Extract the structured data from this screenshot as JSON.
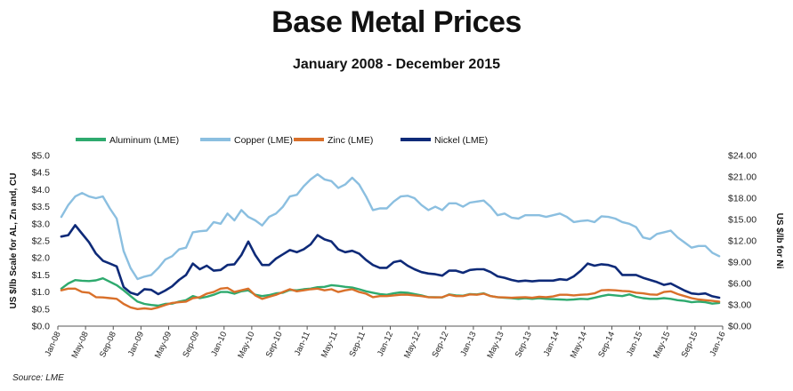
{
  "title": "Base Metal Prices",
  "subtitle": "January 2008 - December 2015",
  "source": "Source: LME",
  "chart_data": {
    "type": "line",
    "x": [
      "2008-01",
      "2008-02",
      "2008-03",
      "2008-04",
      "2008-05",
      "2008-06",
      "2008-07",
      "2008-08",
      "2008-09",
      "2008-10",
      "2008-11",
      "2008-12",
      "2009-01",
      "2009-02",
      "2009-03",
      "2009-04",
      "2009-05",
      "2009-06",
      "2009-07",
      "2009-08",
      "2009-09",
      "2009-10",
      "2009-11",
      "2009-12",
      "2010-01",
      "2010-02",
      "2010-03",
      "2010-04",
      "2010-05",
      "2010-06",
      "2010-07",
      "2010-08",
      "2010-09",
      "2010-10",
      "2010-11",
      "2010-12",
      "2011-01",
      "2011-02",
      "2011-03",
      "2011-04",
      "2011-05",
      "2011-06",
      "2011-07",
      "2011-08",
      "2011-09",
      "2011-10",
      "2011-11",
      "2011-12",
      "2012-01",
      "2012-02",
      "2012-03",
      "2012-04",
      "2012-05",
      "2012-06",
      "2012-07",
      "2012-08",
      "2012-09",
      "2012-10",
      "2012-11",
      "2012-12",
      "2013-01",
      "2013-02",
      "2013-03",
      "2013-04",
      "2013-05",
      "2013-06",
      "2013-07",
      "2013-08",
      "2013-09",
      "2013-10",
      "2013-11",
      "2013-12",
      "2014-01",
      "2014-02",
      "2014-03",
      "2014-04",
      "2014-05",
      "2014-06",
      "2014-07",
      "2014-08",
      "2014-09",
      "2014-10",
      "2014-11",
      "2014-12",
      "2015-01",
      "2015-02",
      "2015-03",
      "2015-04",
      "2015-05",
      "2015-06",
      "2015-07",
      "2015-08",
      "2015-09",
      "2015-10",
      "2015-11",
      "2015-12"
    ],
    "x_tick_labels": [
      "Jan-08",
      "May-08",
      "Sep-08",
      "Jan-09",
      "May-09",
      "Sep-09",
      "Jan-10",
      "May-10",
      "Sep-10",
      "Jan-11",
      "May-11",
      "Sep-11",
      "Jan-12",
      "May-12",
      "Sep-12",
      "Jan-13",
      "May-13",
      "Sep-13",
      "Jan-14",
      "May-14",
      "Sep-14",
      "Jan-15",
      "May-15",
      "Sep-15",
      "Jan-16"
    ],
    "ylabel_left": "US $/lb Scale for AL, Zn and, CU",
    "ylabel_right": "US $/lb for Ni",
    "ylim_left": [
      0,
      5
    ],
    "ylim_right": [
      0,
      24
    ],
    "yticks_left": [
      "$0.0",
      "$0.5",
      "$1.0",
      "$1.5",
      "$2.0",
      "$2.5",
      "$3.0",
      "$3.5",
      "$4.0",
      "$4.5",
      "$5.0"
    ],
    "yticks_right": [
      "$0.00",
      "$3.00",
      "$6.00",
      "$9.00",
      "$12.00",
      "$15.00",
      "$18.00",
      "$21.00",
      "$24.00"
    ],
    "legend_position": "top",
    "grid": false,
    "series": [
      {
        "name": "Aluminum (LME)",
        "axis": "left",
        "color": "#2eaa6e",
        "values": [
          1.1,
          1.25,
          1.35,
          1.33,
          1.32,
          1.34,
          1.4,
          1.3,
          1.2,
          1.05,
          0.88,
          0.72,
          0.65,
          0.62,
          0.6,
          0.65,
          0.66,
          0.72,
          0.76,
          0.88,
          0.82,
          0.86,
          0.92,
          1.0,
          1.0,
          0.95,
          1.02,
          1.05,
          0.92,
          0.88,
          0.91,
          0.96,
          0.98,
          1.06,
          1.05,
          1.08,
          1.1,
          1.14,
          1.15,
          1.2,
          1.18,
          1.15,
          1.13,
          1.08,
          1.02,
          0.98,
          0.94,
          0.92,
          0.96,
          0.99,
          0.98,
          0.94,
          0.9,
          0.85,
          0.85,
          0.84,
          0.93,
          0.9,
          0.89,
          0.94,
          0.93,
          0.96,
          0.88,
          0.85,
          0.83,
          0.82,
          0.8,
          0.82,
          0.8,
          0.82,
          0.8,
          0.79,
          0.78,
          0.77,
          0.78,
          0.8,
          0.79,
          0.83,
          0.88,
          0.92,
          0.9,
          0.88,
          0.93,
          0.86,
          0.82,
          0.8,
          0.8,
          0.82,
          0.8,
          0.76,
          0.74,
          0.7,
          0.72,
          0.7,
          0.66,
          0.68
        ]
      },
      {
        "name": "Copper (LME)",
        "axis": "left",
        "color": "#8bbfe0",
        "values": [
          3.2,
          3.55,
          3.8,
          3.9,
          3.8,
          3.75,
          3.8,
          3.45,
          3.15,
          2.2,
          1.7,
          1.38,
          1.45,
          1.5,
          1.7,
          1.95,
          2.05,
          2.25,
          2.3,
          2.75,
          2.78,
          2.8,
          3.05,
          3.0,
          3.3,
          3.1,
          3.4,
          3.2,
          3.1,
          2.95,
          3.2,
          3.3,
          3.5,
          3.8,
          3.85,
          4.1,
          4.3,
          4.45,
          4.3,
          4.25,
          4.05,
          4.15,
          4.35,
          4.15,
          3.8,
          3.4,
          3.45,
          3.45,
          3.65,
          3.8,
          3.82,
          3.75,
          3.55,
          3.4,
          3.5,
          3.4,
          3.6,
          3.6,
          3.5,
          3.62,
          3.65,
          3.68,
          3.5,
          3.25,
          3.3,
          3.18,
          3.15,
          3.25,
          3.25,
          3.25,
          3.2,
          3.25,
          3.3,
          3.2,
          3.05,
          3.08,
          3.1,
          3.05,
          3.22,
          3.2,
          3.15,
          3.05,
          3.0,
          2.9,
          2.6,
          2.55,
          2.7,
          2.75,
          2.8,
          2.6,
          2.45,
          2.3,
          2.35,
          2.35,
          2.15,
          2.05
        ]
      },
      {
        "name": "Zinc (LME)",
        "axis": "left",
        "color": "#d9702a",
        "values": [
          1.05,
          1.1,
          1.1,
          1.0,
          0.98,
          0.85,
          0.84,
          0.82,
          0.8,
          0.65,
          0.55,
          0.5,
          0.52,
          0.5,
          0.55,
          0.62,
          0.68,
          0.7,
          0.72,
          0.82,
          0.85,
          0.95,
          1.0,
          1.1,
          1.12,
          1.0,
          1.05,
          1.1,
          0.9,
          0.8,
          0.86,
          0.92,
          1.0,
          1.08,
          1.02,
          1.05,
          1.08,
          1.1,
          1.05,
          1.08,
          1.0,
          1.05,
          1.08,
          1.0,
          0.95,
          0.85,
          0.88,
          0.88,
          0.9,
          0.92,
          0.92,
          0.9,
          0.88,
          0.85,
          0.84,
          0.85,
          0.92,
          0.88,
          0.88,
          0.93,
          0.92,
          0.95,
          0.88,
          0.85,
          0.84,
          0.83,
          0.84,
          0.85,
          0.83,
          0.86,
          0.85,
          0.87,
          0.92,
          0.92,
          0.9,
          0.92,
          0.93,
          0.96,
          1.05,
          1.06,
          1.05,
          1.03,
          1.02,
          0.98,
          0.96,
          0.93,
          0.92,
          1.0,
          1.02,
          0.94,
          0.88,
          0.82,
          0.78,
          0.76,
          0.74,
          0.72
        ]
      },
      {
        "name": "Nickel (LME)",
        "axis": "right",
        "color": "#0e2a78",
        "values": [
          12.6,
          12.8,
          14.2,
          13.0,
          11.8,
          10.2,
          9.2,
          8.8,
          8.4,
          5.5,
          4.7,
          4.4,
          5.2,
          5.1,
          4.5,
          5.0,
          5.6,
          6.5,
          7.2,
          8.8,
          8.0,
          8.5,
          7.8,
          7.9,
          8.6,
          8.7,
          10.0,
          11.9,
          10.0,
          8.6,
          8.6,
          9.5,
          10.1,
          10.7,
          10.4,
          10.8,
          11.5,
          12.8,
          12.2,
          11.9,
          10.8,
          10.4,
          10.6,
          10.2,
          9.3,
          8.6,
          8.2,
          8.2,
          9.0,
          9.2,
          8.5,
          8.0,
          7.6,
          7.4,
          7.3,
          7.1,
          7.8,
          7.8,
          7.5,
          7.9,
          8.0,
          8.0,
          7.6,
          7.0,
          6.8,
          6.5,
          6.3,
          6.4,
          6.3,
          6.4,
          6.4,
          6.4,
          6.6,
          6.5,
          7.0,
          7.8,
          8.8,
          8.5,
          8.7,
          8.6,
          8.3,
          7.2,
          7.2,
          7.2,
          6.8,
          6.5,
          6.2,
          5.8,
          6.0,
          5.5,
          5.0,
          4.6,
          4.5,
          4.6,
          4.2,
          4.0
        ]
      }
    ]
  }
}
